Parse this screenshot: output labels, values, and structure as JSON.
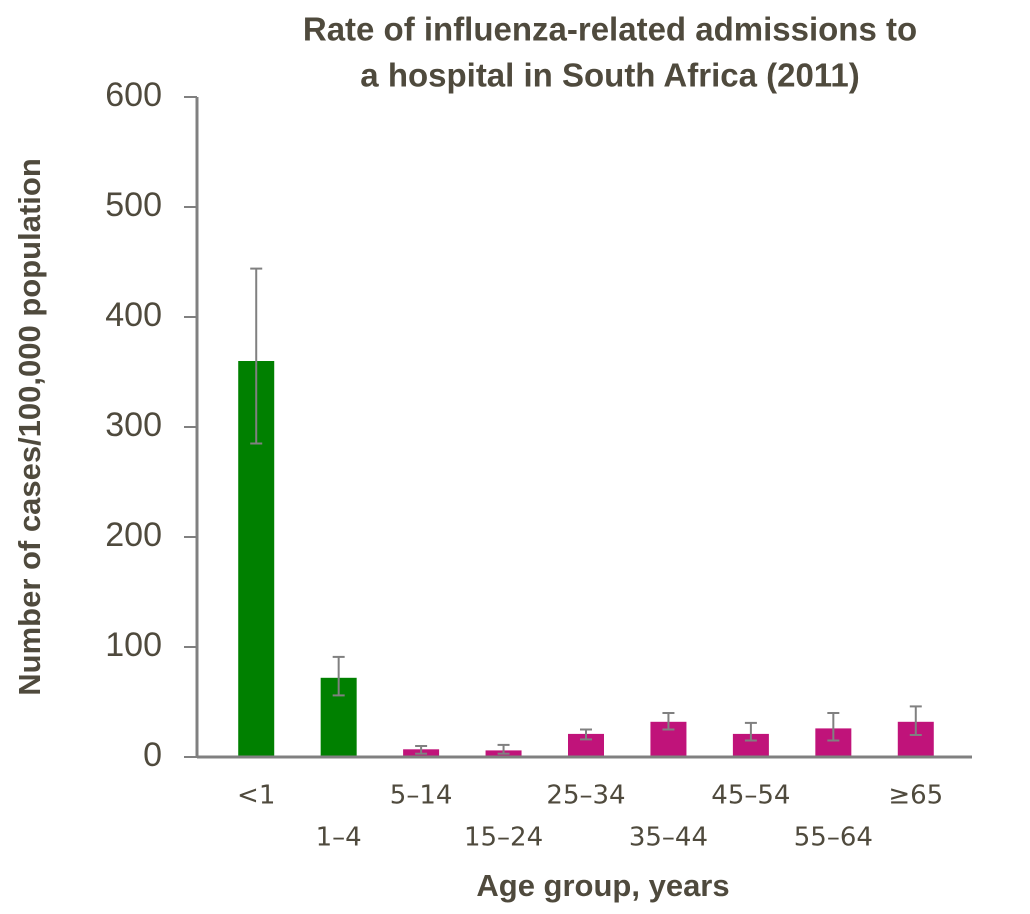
{
  "chart_data": {
    "type": "bar",
    "title": "Rate of influenza-related admissions to a hospital in South Africa (2011)",
    "x_label": "Age group, years",
    "y_label": "Number of  cases/100,000 population",
    "categories": [
      "<1",
      "1–4",
      "5–14",
      "15–24",
      "25–34",
      "35–44",
      "45–54",
      "55–64",
      "≥65"
    ],
    "values": [
      360,
      72,
      7,
      6,
      21,
      32,
      21,
      26,
      32
    ],
    "lower": [
      285,
      56,
      3,
      3,
      16,
      25,
      15,
      15,
      20
    ],
    "upper": [
      444,
      91,
      10,
      11,
      25,
      40,
      31,
      40,
      46
    ],
    "colors": [
      "#008000",
      "#008000",
      "#c0137a",
      "#c0137a",
      "#c0137a",
      "#c0137a",
      "#c0137a",
      "#c0137a",
      "#c0137a"
    ],
    "error_color": "#808080",
    "ylim": [
      0,
      600
    ],
    "yticks": [
      0,
      100,
      200,
      300,
      400,
      500,
      600
    ]
  }
}
